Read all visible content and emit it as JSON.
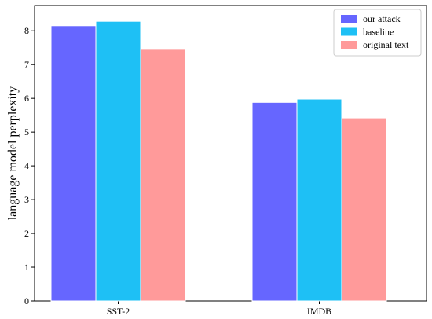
{
  "chart_data": {
    "type": "bar",
    "title": "",
    "xlabel": "",
    "ylabel": "language model perplexity",
    "categories": [
      "SST-2",
      "IMDB"
    ],
    "series": [
      {
        "name": "our attack",
        "color": "#6666ff",
        "values": [
          8.15,
          5.88
        ]
      },
      {
        "name": "baseline",
        "color": "#1ec0f5",
        "values": [
          8.28,
          5.98
        ]
      },
      {
        "name": "original text",
        "color": "#ff9a9a",
        "values": [
          7.45,
          5.42
        ]
      }
    ],
    "ylim": [
      0,
      8.75
    ],
    "yticks": [
      0,
      1,
      2,
      3,
      4,
      5,
      6,
      7,
      8
    ],
    "legend_position": "top-right",
    "grid": false
  }
}
